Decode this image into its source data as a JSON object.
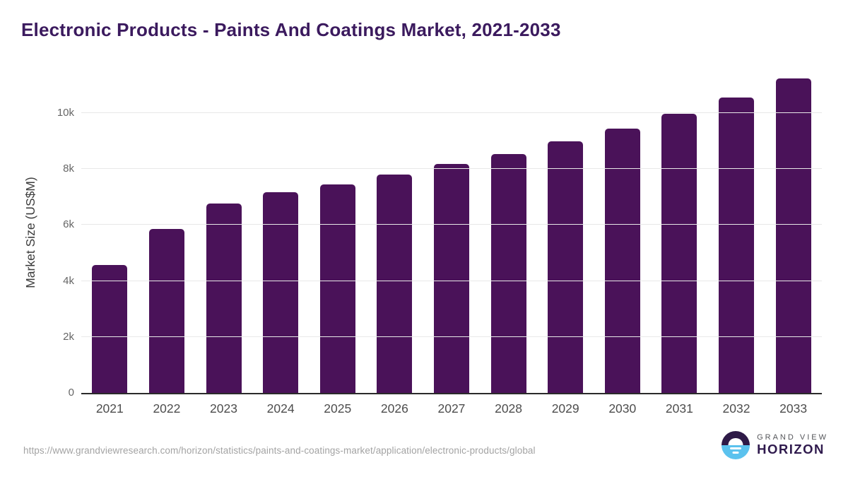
{
  "chart_data": {
    "type": "bar",
    "title": "Electronic Products - Paints And Coatings Market, 2021-2033",
    "categories": [
      "2021",
      "2022",
      "2023",
      "2024",
      "2025",
      "2026",
      "2027",
      "2028",
      "2029",
      "2030",
      "2031",
      "2032",
      "2033"
    ],
    "values": [
      4560,
      5860,
      6770,
      7160,
      7440,
      7810,
      8170,
      8540,
      8980,
      9450,
      9980,
      10550,
      11230
    ],
    "xlabel": "",
    "ylabel": "Market Size (US$M)",
    "ylim": [
      0,
      11560
    ],
    "yticks": [
      {
        "value": 0,
        "label": "0"
      },
      {
        "value": 2000,
        "label": "2k"
      },
      {
        "value": 4000,
        "label": "4k"
      },
      {
        "value": 6000,
        "label": "6k"
      },
      {
        "value": 8000,
        "label": "8k"
      },
      {
        "value": 10000,
        "label": "10k"
      }
    ],
    "grid": "horizontal",
    "legend": "none",
    "colors": {
      "bar": "#4a1259",
      "title": "#3b1a5e",
      "axis_line": "#2b2b2b",
      "gridline": "#e8e8e8",
      "tick_label": "#666666",
      "x_label": "#4d4d4d"
    }
  },
  "footer": {
    "source_url": "https://www.grandviewresearch.com/horizon/statistics/paints-and-coatings-market/application/electronic-products/global",
    "logo": {
      "line1": "GRAND VIEW",
      "line2": "HORIZON",
      "colors": {
        "circle_top": "#2e1a47",
        "circle_bottom": "#5bc2ee",
        "wordmark_line1": "#55565a",
        "wordmark_line2": "#2f1a4d"
      }
    }
  }
}
